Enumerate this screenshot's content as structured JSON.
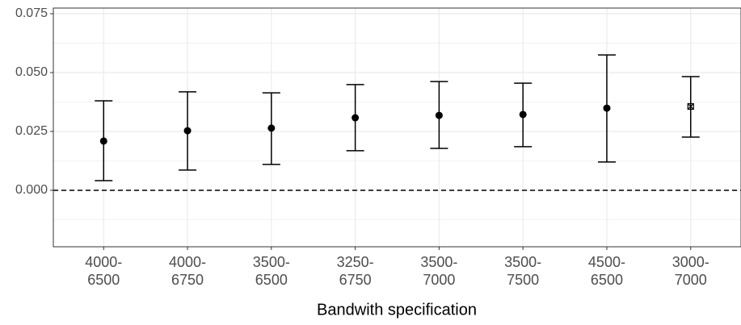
{
  "chart_data": {
    "type": "errorbar",
    "x_label": "Bandwith specification",
    "categories": [
      [
        "4000-",
        "6500"
      ],
      [
        "4000-",
        "6750"
      ],
      [
        "3500-",
        "6500"
      ],
      [
        "3250-",
        "6750"
      ],
      [
        "3500-",
        "7000"
      ],
      [
        "3500-",
        "7500"
      ],
      [
        "4500-",
        "6500"
      ],
      [
        "3000-",
        "7000"
      ]
    ],
    "series": [
      {
        "values": [
          0.0209,
          0.0253,
          0.0264,
          0.0308,
          0.0318,
          0.0322,
          0.0349,
          0.0356
        ],
        "lower": [
          0.0041,
          0.0086,
          0.011,
          0.0168,
          0.0178,
          0.0185,
          0.012,
          0.0226
        ],
        "upper": [
          0.038,
          0.0418,
          0.0414,
          0.0449,
          0.0462,
          0.0455,
          0.0575,
          0.0483
        ],
        "markers": [
          "circle",
          "circle",
          "circle",
          "circle",
          "circle",
          "circle",
          "circle",
          "square-x"
        ],
        "color": "#000000"
      }
    ],
    "ylim": [
      -0.024,
      0.0774
    ],
    "yticks": [
      {
        "value": 0,
        "label": "0.000"
      },
      0.025,
      {
        "value": 0.05,
        "label": "0.050"
      },
      0.075
    ],
    "hline": 0,
    "grid": true
  }
}
